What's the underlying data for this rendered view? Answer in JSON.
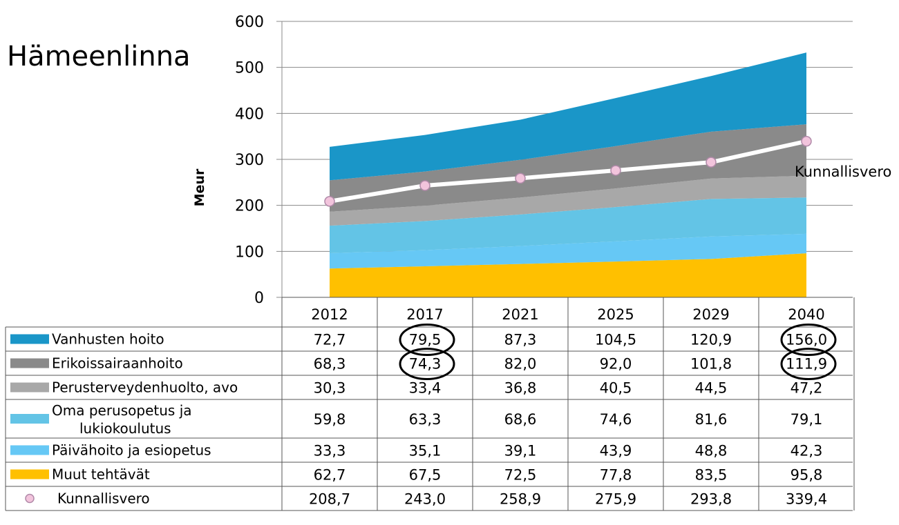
{
  "title": "Hämeenlinna",
  "ylabel": "Meur",
  "end_label": "Kunnallisvero",
  "chart_data": {
    "type": "area",
    "title": "Hämeenlinna",
    "xlabel": "",
    "ylabel": "Meur",
    "ylim": [
      0,
      600
    ],
    "yticks": [
      0,
      100,
      200,
      300,
      400,
      500,
      600
    ],
    "grid": true,
    "stacked": true,
    "categories": [
      "2012",
      "2017",
      "2021",
      "2025",
      "2029",
      "2040"
    ],
    "series": [
      {
        "name": "Vanhusten hoito",
        "type": "area",
        "color": "#1a96c8",
        "values": [
          72.7,
          79.5,
          87.3,
          104.5,
          120.9,
          156.0
        ],
        "labels": [
          "72,7",
          "79,5",
          "87,3",
          "104,5",
          "120,9",
          "156,0"
        ]
      },
      {
        "name": "Erikoissairaanhoito",
        "type": "area",
        "color": "#8a8a8a",
        "values": [
          68.3,
          74.3,
          82.0,
          92.0,
          101.8,
          111.9
        ],
        "labels": [
          "68,3",
          "74,3",
          "82,0",
          "92,0",
          "101,8",
          "111,9"
        ]
      },
      {
        "name": "Perusterveydenhuolto, avo",
        "type": "area",
        "color": "#a8a8a8",
        "values": [
          30.3,
          33.4,
          36.8,
          40.5,
          44.5,
          47.2
        ],
        "labels": [
          "30,3",
          "33,4",
          "36,8",
          "40,5",
          "44,5",
          "47,2"
        ]
      },
      {
        "name": "Oma perusopetus ja lukiokoulutus",
        "type": "area",
        "color": "#63c4e6",
        "legend_lines": [
          "Oma perusopetus ja",
          "lukiokoulutus"
        ],
        "values": [
          59.8,
          63.3,
          68.6,
          74.6,
          81.6,
          79.1
        ],
        "labels": [
          "59,8",
          "63,3",
          "68,6",
          "74,6",
          "81,6",
          "79,1"
        ]
      },
      {
        "name": "Päivähoito ja esiopetus",
        "type": "area",
        "color": "#66c8f5",
        "values": [
          33.3,
          35.1,
          39.1,
          43.9,
          48.8,
          42.3
        ],
        "labels": [
          "33,3",
          "35,1",
          "39,1",
          "43,9",
          "48,8",
          "42,3"
        ]
      },
      {
        "name": "Muut tehtävät",
        "type": "area",
        "color": "#ffc000",
        "values": [
          62.7,
          67.5,
          72.5,
          77.8,
          83.5,
          95.8
        ],
        "labels": [
          "62,7",
          "67,5",
          "72,5",
          "77,8",
          "83,5",
          "95,8"
        ]
      },
      {
        "name": "Kunnallisvero",
        "type": "line",
        "color": "#ffffff",
        "marker_color": "#f2c4dc",
        "values": [
          208.7,
          243.0,
          258.9,
          275.9,
          293.8,
          339.4
        ],
        "labels": [
          "208,7",
          "243,0",
          "258,9",
          "275,9",
          "293,8",
          "339,4"
        ]
      }
    ],
    "annotations": [
      {
        "type": "circle",
        "series": "Vanhusten hoito",
        "category": "2017"
      },
      {
        "type": "circle",
        "series": "Vanhusten hoito",
        "category": "2040"
      },
      {
        "type": "circle",
        "series": "Erikoissairaanhoito",
        "category": "2017"
      },
      {
        "type": "circle",
        "series": "Erikoissairaanhoito",
        "category": "2040"
      }
    ]
  }
}
